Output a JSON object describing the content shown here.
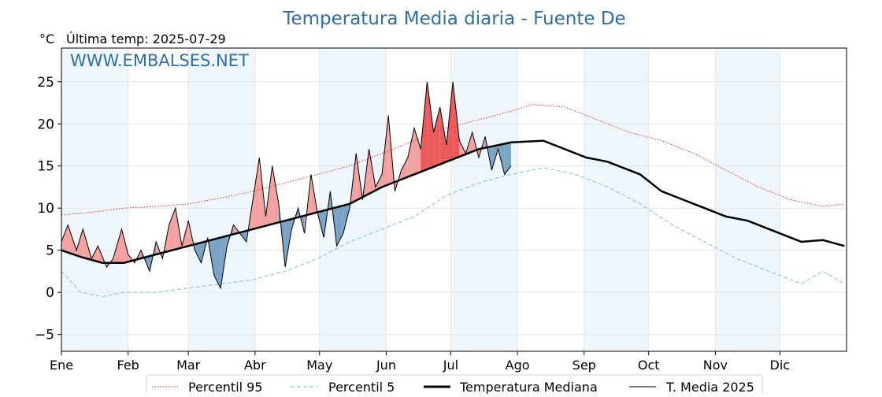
{
  "chart_data": {
    "type": "line",
    "title": "Temperatura Media diaria - Fuente De",
    "ylabel": "°C",
    "subtitle": "Última temp: 2025-07-29",
    "watermark": "WWW.EMBALSES.NET",
    "ylim": [
      -7,
      29
    ],
    "yticks": [
      -5,
      0,
      5,
      10,
      15,
      20,
      25
    ],
    "ytick_labels": [
      "−5",
      "0",
      "5",
      "10",
      "15",
      "20",
      "25"
    ],
    "months": [
      "Ene",
      "Feb",
      "Mar",
      "Abr",
      "May",
      "Jun",
      "Jul",
      "Ago",
      "Sep",
      "Oct",
      "Nov",
      "Dic"
    ],
    "month_start_days": [
      1,
      32,
      60,
      91,
      121,
      152,
      182,
      213,
      244,
      274,
      305,
      335
    ],
    "xlim": [
      1,
      366
    ],
    "grid": true,
    "legend_position": "bottom",
    "legend": [
      "Percentil 95",
      "Percentil 5",
      "Temperatura Mediana",
      "T. Media 2025"
    ],
    "colors": {
      "title": "#2f6ea6",
      "watermark": "#2f6ea6",
      "p95": "#e8211c",
      "p5": "#8ec9dd",
      "median": "#000000",
      "current": "#000000",
      "above_fill": "#f3a2a2",
      "above_fill_strong": "#ec5b5b",
      "below_fill": "#7aa3c6",
      "band_shade": "#eef5fb"
    },
    "series": [
      {
        "name": "Percentil 95",
        "style": "dotted",
        "days": [
          1,
          15,
          30,
          45,
          60,
          75,
          90,
          105,
          120,
          135,
          150,
          165,
          180,
          195,
          210,
          220,
          235,
          250,
          265,
          280,
          295,
          310,
          325,
          340,
          355,
          365
        ],
        "values": [
          9.2,
          9.5,
          10.0,
          10.2,
          10.5,
          11.2,
          12.0,
          13.0,
          14.0,
          15.0,
          16.5,
          18.0,
          19.5,
          20.5,
          21.5,
          22.3,
          22.0,
          20.5,
          19.0,
          18.0,
          16.5,
          14.5,
          12.5,
          11.0,
          10.2,
          10.5
        ]
      },
      {
        "name": "Percentil 5",
        "style": "dashed",
        "days": [
          1,
          10,
          20,
          30,
          45,
          60,
          75,
          90,
          105,
          120,
          135,
          150,
          165,
          180,
          195,
          210,
          225,
          240,
          255,
          270,
          285,
          300,
          315,
          330,
          345,
          355,
          365
        ],
        "values": [
          2.5,
          0.0,
          -0.5,
          0.0,
          0.0,
          0.5,
          1.0,
          1.5,
          2.5,
          4.0,
          6.0,
          7.5,
          9.0,
          11.5,
          13.0,
          14.0,
          14.8,
          14.0,
          12.5,
          10.5,
          8.0,
          6.0,
          4.0,
          2.5,
          1.0,
          2.5,
          1.0
        ]
      },
      {
        "name": "Temperatura Mediana",
        "style": "solid-bold",
        "days": [
          1,
          10,
          20,
          30,
          45,
          60,
          75,
          90,
          105,
          120,
          135,
          150,
          165,
          180,
          195,
          210,
          225,
          235,
          245,
          255,
          270,
          280,
          290,
          300,
          310,
          320,
          330,
          345,
          355,
          365
        ],
        "values": [
          5.0,
          4.2,
          3.5,
          3.5,
          4.5,
          5.5,
          6.5,
          7.5,
          8.5,
          9.5,
          10.5,
          12.5,
          14.0,
          15.5,
          17.0,
          17.8,
          18.0,
          17.0,
          16.0,
          15.5,
          14.0,
          12.0,
          11.0,
          10.0,
          9.0,
          8.5,
          7.5,
          6.0,
          6.2,
          5.5
        ]
      },
      {
        "name": "T. Media 2025",
        "style": "solid-thin",
        "days": [
          1,
          4,
          8,
          11,
          15,
          18,
          22,
          25,
          29,
          32,
          35,
          38,
          42,
          45,
          48,
          51,
          54,
          57,
          60,
          63,
          66,
          69,
          72,
          75,
          78,
          81,
          84,
          87,
          90,
          93,
          96,
          99,
          102,
          105,
          108,
          111,
          114,
          117,
          120,
          123,
          126,
          129,
          132,
          135,
          138,
          141,
          144,
          147,
          150,
          153,
          156,
          159,
          162,
          165,
          168,
          171,
          174,
          177,
          180,
          183,
          186,
          189,
          192,
          195,
          198,
          201,
          204,
          207,
          210
        ],
        "values": [
          6.0,
          8.0,
          5.0,
          7.5,
          4.0,
          5.5,
          3.0,
          4.0,
          7.5,
          4.5,
          3.5,
          5.0,
          2.5,
          6.0,
          4.0,
          8.0,
          10.0,
          5.5,
          8.5,
          5.0,
          3.5,
          6.5,
          2.0,
          0.5,
          5.5,
          8.0,
          7.0,
          6.0,
          11.0,
          16.0,
          9.0,
          15.0,
          10.5,
          3.0,
          7.5,
          10.0,
          7.0,
          14.0,
          9.5,
          6.5,
          12.0,
          5.5,
          7.0,
          10.0,
          16.5,
          11.0,
          17.0,
          12.5,
          14.0,
          21.0,
          12.0,
          14.5,
          16.0,
          19.5,
          17.0,
          25.0,
          19.0,
          22.0,
          17.5,
          25.0,
          18.0,
          16.5,
          19.0,
          16.0,
          18.5,
          14.5,
          17.0,
          14.0,
          15.0
        ]
      }
    ]
  }
}
